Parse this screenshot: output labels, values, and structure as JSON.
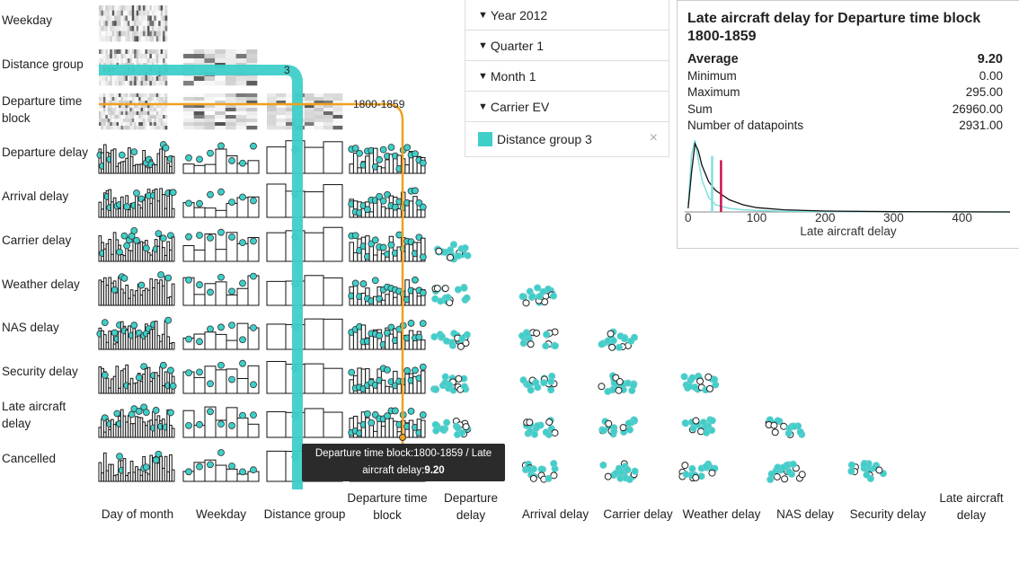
{
  "chart_data": {
    "type": "scatter",
    "rows": [
      "Weekday",
      "Distance group",
      "Departure time block",
      "Departure delay",
      "Arrival delay",
      "Carrier delay",
      "Weather delay",
      "NAS delay",
      "Security delay",
      "Late aircraft delay",
      "Cancelled"
    ],
    "columns": [
      "Day of month",
      "Weekday",
      "Distance group",
      "Departure time block",
      "Departure delay",
      "Arrival delay",
      "Carrier delay",
      "Weather delay",
      "NAS delay",
      "Security delay",
      "Late aircraft delay"
    ],
    "row_labels": [
      "Weekday",
      "Distance group",
      "Departure time|block",
      "Departure delay",
      "Arrival delay",
      "Carrier delay",
      "Weather delay",
      "NAS delay",
      "Security delay",
      "Late aircraft|delay",
      "Cancelled"
    ],
    "col_labels": [
      "Day of month",
      "Weekday",
      "Distance group",
      "Departure time|block",
      "Departure|delay",
      "Arrival delay",
      "Carrier delay",
      "Weather delay",
      "NAS delay",
      "Security delay",
      "Late aircraft|delay"
    ],
    "highlight": {
      "distance_group_label": "3",
      "departure_block_label": "1800-1859",
      "highlight_color": "#3ecfc9",
      "crosshair_color": "#f0a020"
    },
    "density": {
      "xlabel": "Late aircraft delay",
      "xticks": [
        0,
        100,
        200,
        300,
        400
      ],
      "xlim": [
        -5,
        470
      ],
      "series_all": [
        [
          0,
          0.05
        ],
        [
          5,
          0.55
        ],
        [
          10,
          0.95
        ],
        [
          15,
          0.85
        ],
        [
          20,
          0.65
        ],
        [
          30,
          0.42
        ],
        [
          40,
          0.3
        ],
        [
          60,
          0.17
        ],
        [
          80,
          0.1
        ],
        [
          100,
          0.06
        ],
        [
          140,
          0.03
        ],
        [
          200,
          0.012
        ],
        [
          300,
          0.004
        ],
        [
          470,
          0
        ]
      ],
      "series_highlight": [
        [
          0,
          0.1
        ],
        [
          5,
          0.8
        ],
        [
          10,
          1.0
        ],
        [
          15,
          0.72
        ],
        [
          20,
          0.45
        ],
        [
          30,
          0.2
        ],
        [
          40,
          0.1
        ],
        [
          60,
          0.05
        ],
        [
          80,
          0.03
        ],
        [
          100,
          0.02
        ],
        [
          140,
          0.01
        ],
        [
          200,
          0.005
        ],
        [
          470,
          0
        ]
      ],
      "mean_all": 35,
      "mean_highlight": 48,
      "colors": {
        "all": "#111111",
        "highlight": "#7fe0dc",
        "mean_all": "#7fe0dc",
        "mean_highlight": "#cc1155"
      }
    }
  },
  "filters": [
    {
      "label": "Year 2012"
    },
    {
      "label": "Quarter 1"
    },
    {
      "label": "Month 1"
    },
    {
      "label": "Carrier EV"
    }
  ],
  "highlight_filter": {
    "label": "Distance group 3",
    "close": "×",
    "color": "#3ecfc9"
  },
  "stats": {
    "title": "Late aircraft delay for Departure time block 1800-1859",
    "rows": [
      {
        "label": "Average",
        "value": "9.20"
      },
      {
        "label": "Minimum",
        "value": "0.00"
      },
      {
        "label": "Maximum",
        "value": "295.00"
      },
      {
        "label": "Sum",
        "value": "26960.00"
      },
      {
        "label": "Number of datapoints",
        "value": "2931.00"
      }
    ]
  },
  "tooltip": {
    "line1": "Departure time block:1800-1859 / Late",
    "line2_prefix": "aircraft delay:",
    "line2_value": "9.20"
  }
}
